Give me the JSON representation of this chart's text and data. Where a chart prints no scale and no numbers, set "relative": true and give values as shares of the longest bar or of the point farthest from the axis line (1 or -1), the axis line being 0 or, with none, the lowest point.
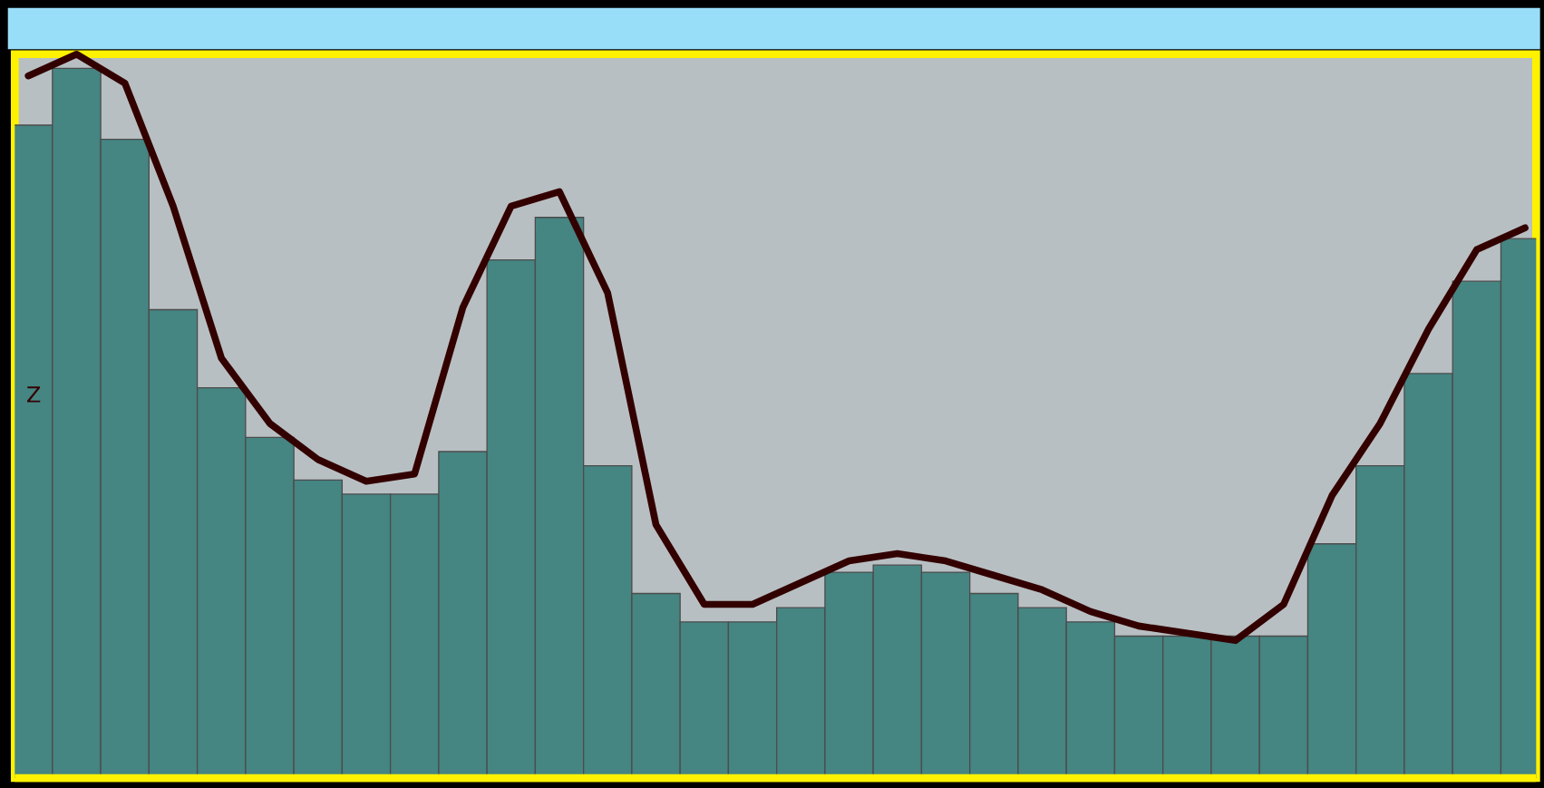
{
  "chart_data": [
    {
      "type": "bar",
      "relative": true,
      "categories": [
        null,
        null,
        null,
        null,
        null,
        null,
        null,
        null,
        null,
        null,
        null,
        null,
        null,
        null,
        null,
        null,
        null,
        null,
        null,
        null,
        null,
        null,
        null,
        null,
        null,
        null,
        null,
        null,
        null,
        null,
        null,
        null
      ],
      "color": "#458582",
      "values": [
        0.92,
        1,
        0.9,
        0.66,
        0.55,
        0.48,
        0.42,
        0.4,
        0.4,
        0.46,
        0.73,
        0.79,
        0.44,
        0.26,
        0.22,
        0.22,
        0.24,
        0.29,
        0.3,
        0.29,
        0.26,
        0.24,
        0.22,
        0.2,
        0.2,
        0.2,
        0.2,
        0.33,
        0.44,
        0.57,
        0.7,
        0.76
      ]
    },
    {
      "type": "line",
      "relative": true,
      "ylabel": "Z",
      "categories": [
        null,
        null,
        null,
        null,
        null,
        null,
        null,
        null,
        null,
        null,
        null,
        null,
        null,
        null,
        null,
        null,
        null,
        null,
        null,
        null,
        null,
        null,
        null,
        null,
        null,
        null,
        null,
        null,
        null,
        null,
        null,
        null
      ],
      "color": "#330000",
      "values": [
        0.97,
        1,
        0.96,
        0.79,
        0.58,
        0.49,
        0.44,
        0.41,
        0.42,
        0.65,
        0.79,
        0.81,
        0.67,
        0.35,
        0.24,
        0.24,
        0.27,
        0.3,
        0.31,
        0.3,
        0.28,
        0.26,
        0.23,
        0.21,
        0.2,
        0.19,
        0.24,
        0.39,
        0.49,
        0.62,
        0.73,
        0.76
      ]
    }
  ]
}
